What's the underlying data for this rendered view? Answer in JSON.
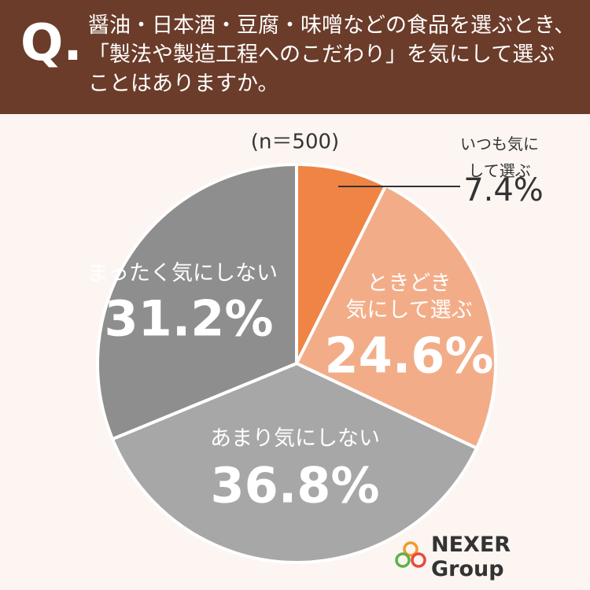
{
  "chart_data": {
    "type": "pie",
    "title_prefix": "Q.",
    "title": "醤油・日本酒・豆腐・味噌などの食品を選ぶとき、\n「製法や製造工程へのこだわり」を気にして選ぶ\nことはありますか。",
    "subtitle": "(n＝500)",
    "categories": [
      "いつも気にして選ぶ",
      "ときどき\n気にして選ぶ",
      "あまり気にしない",
      "まったく気にしない"
    ],
    "values": [
      7.4,
      24.6,
      36.8,
      31.2
    ],
    "value_labels": [
      "7.4%",
      "24.6%",
      "36.8%",
      "31.2%"
    ],
    "colors": [
      "#ef8444",
      "#f2ad88",
      "#a7a7a7",
      "#8e8e8e"
    ],
    "logo": "NEXER Group"
  }
}
